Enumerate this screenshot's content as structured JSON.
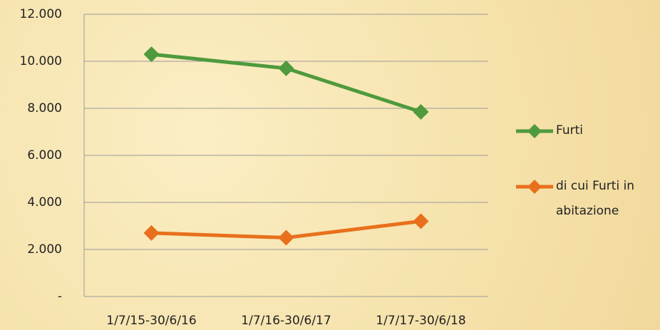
{
  "chart_data": {
    "type": "line",
    "categories": [
      "1/7/15-30/6/16",
      "1/7/16-30/6/17",
      "1/7/17-30/6/18"
    ],
    "series": [
      {
        "name": "Furti",
        "color": "#4e9a3c",
        "values": [
          10300,
          9700,
          7850
        ]
      },
      {
        "name": "di cui Furti in abitazione",
        "color": "#e8701c",
        "values": [
          2700,
          2500,
          3200
        ]
      }
    ],
    "ylim": [
      0,
      12000
    ],
    "yticks": [
      {
        "value": 0,
        "label": "-"
      },
      {
        "value": 2000,
        "label": "2.000"
      },
      {
        "value": 4000,
        "label": "4.000"
      },
      {
        "value": 6000,
        "label": "6.000"
      },
      {
        "value": 8000,
        "label": "8.000"
      },
      {
        "value": 10000,
        "label": "10.000"
      },
      {
        "value": 12000,
        "label": "12.000"
      }
    ],
    "grid": true,
    "legend": "right"
  }
}
